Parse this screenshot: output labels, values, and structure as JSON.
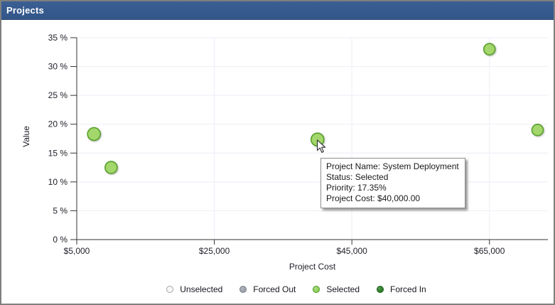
{
  "panel": {
    "title": "Projects"
  },
  "chart_data": {
    "type": "scatter",
    "title": "",
    "xlabel": "Project Cost",
    "ylabel": "Value",
    "xlim": [
      5000,
      73500
    ],
    "ylim": [
      0,
      35
    ],
    "grid": true,
    "legend_position": "bottom",
    "x_ticks": {
      "values": [
        5000,
        25000,
        45000,
        65000
      ],
      "labels": [
        "$5,000",
        "$25,000",
        "$45,000",
        "$65,000"
      ]
    },
    "y_ticks": {
      "values": [
        0,
        5,
        10,
        15,
        20,
        25,
        30,
        35
      ],
      "labels": [
        "0 %",
        "5 %",
        "10 %",
        "15 %",
        "20 %",
        "25 %",
        "30 %",
        "35 %"
      ]
    },
    "series": [
      {
        "name": "Selected",
        "marker_fill": "#A3D66B",
        "marker_border": "#57A02C",
        "points": [
          {
            "project_cost": 7500,
            "value_pct": 18.3,
            "size": 9
          },
          {
            "project_cost": 10000,
            "value_pct": 12.5,
            "size": 8.5
          },
          {
            "project_cost": 40000,
            "value_pct": 17.35,
            "size": 9,
            "project_name": "System Deployment",
            "status": "Selected",
            "hovered": true
          },
          {
            "project_cost": 65000,
            "value_pct": 33,
            "size": 8
          },
          {
            "project_cost": 72000,
            "value_pct": 19,
            "size": 8
          }
        ]
      }
    ],
    "legend": [
      {
        "label": "Unselected",
        "fill": "#F6F6F6",
        "border": "#A6A6A6"
      },
      {
        "label": "Forced Out",
        "fill": "#9DA3AC",
        "border": "#767C84"
      },
      {
        "label": "Selected",
        "fill": "#93D25F",
        "border": "#459322"
      },
      {
        "label": "Forced In",
        "fill": "#2B7E26",
        "border": "#1B5F1B"
      }
    ]
  },
  "tooltip": {
    "lines": [
      "Project Name: System Deployment",
      "Status: Selected",
      "Priority: 17.35%",
      "Project Cost: $40,000.00"
    ]
  },
  "colors": {
    "titlebar_bg": "#36598C",
    "titlebar_text": "#FFFFFF",
    "grid_line": "#EDEDF7",
    "axis_line": "#333333",
    "tick_text": "#21212B"
  }
}
